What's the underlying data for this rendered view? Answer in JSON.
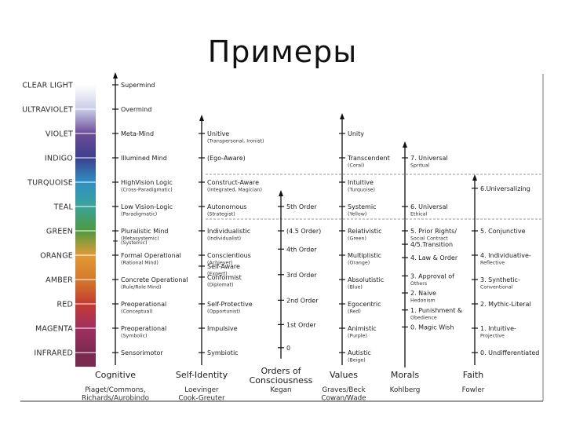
{
  "title": "Примеры",
  "spectrum": {
    "levels": [
      {
        "name": "CLEAR LIGHT",
        "color": "#ffffff"
      },
      {
        "name": "ULTRAVIOLET",
        "color": "#c9cde8"
      },
      {
        "name": "VIOLET",
        "color": "#6c4c98"
      },
      {
        "name": "INDIGO",
        "color": "#3d3f8e"
      },
      {
        "name": "TURQUOISE",
        "color": "#2f8fc4"
      },
      {
        "name": "TEAL",
        "color": "#3aa39a"
      },
      {
        "name": "GREEN",
        "color": "#4f9a3d"
      },
      {
        "name": "ORANGE",
        "color": "#e39a36"
      },
      {
        "name": "AMBER",
        "color": "#d67a2c"
      },
      {
        "name": "RED",
        "color": "#c33a30"
      },
      {
        "name": "MAGENTA",
        "color": "#a03062"
      },
      {
        "name": "INFRARED",
        "color": "#7a2a4e"
      }
    ]
  },
  "columns": [
    {
      "heading": "Cognitive",
      "sources": [
        "Piaget/Commons,",
        "Richards/Aurobindo"
      ],
      "stages": [
        {
          "level": 0,
          "main": "Supermind",
          "sub": ""
        },
        {
          "level": 1,
          "main": "Overmind",
          "sub": ""
        },
        {
          "level": 2,
          "main": "Meta-Mind",
          "sub": ""
        },
        {
          "level": 3,
          "main": "Illumined Mind",
          "sub": ""
        },
        {
          "level": 4,
          "main": "HighVision Logic",
          "sub": "(Cross-Paradigmatic)"
        },
        {
          "level": 5,
          "main": "Low Vision-Logic",
          "sub": "(Paradigmatic)"
        },
        {
          "level": 6,
          "main": "Pluralistic Mind",
          "sub": "(Metasystemic)"
        },
        {
          "level": 6.45,
          "main": "",
          "sub": "(Systemic)"
        },
        {
          "level": 7,
          "main": "Formal Operational",
          "sub": "(Rational Mind)"
        },
        {
          "level": 8,
          "main": "Concrete Operational",
          "sub": "(Rule/Role Mind)"
        },
        {
          "level": 9,
          "main": "Preoperational",
          "sub": "(Conceptual)"
        },
        {
          "level": 10,
          "main": "Preoperational",
          "sub": "(Symbolic)"
        },
        {
          "level": 11,
          "main": "Sensorimotor",
          "sub": ""
        }
      ]
    },
    {
      "heading": "Self-Identity",
      "sources": [
        "Loevinger",
        "Cook-Greuter"
      ],
      "stages": [
        {
          "level": 2,
          "main": "Unitive",
          "sub": "(Transpersonal, Ironist)"
        },
        {
          "level": 3,
          "main": "(Ego-Aware)",
          "sub": ""
        },
        {
          "level": 4,
          "main": "Construct-Aware",
          "sub": "(Integrated, Magician)"
        },
        {
          "level": 5,
          "main": "Autonomous",
          "sub": "(Strategist)"
        },
        {
          "level": 6,
          "main": "Individualistic",
          "sub": "(Individualist)"
        },
        {
          "level": 7,
          "main": "Conscientious",
          "sub": "(Achiever)"
        },
        {
          "level": 7.45,
          "main": "Self-Aware",
          "sub": "(Expert)"
        },
        {
          "level": 7.9,
          "main": "Conformist",
          "sub": "(Diplomat)"
        },
        {
          "level": 9,
          "main": "Self-Protective",
          "sub": "(Opportunist)"
        },
        {
          "level": 10,
          "main": "Impulsive",
          "sub": ""
        },
        {
          "level": 11,
          "main": "Symbiotic",
          "sub": ""
        }
      ]
    },
    {
      "heading": "Orders of Consciousness",
      "sources": [
        "Kegan"
      ],
      "stages": [
        {
          "level": 5,
          "main": "5th Order",
          "sub": ""
        },
        {
          "level": 6,
          "main": "(4.5 Order)",
          "sub": ""
        },
        {
          "level": 6.75,
          "main": "4th Order",
          "sub": ""
        },
        {
          "level": 7.8,
          "main": "3rd Order",
          "sub": ""
        },
        {
          "level": 8.85,
          "main": "2nd Order",
          "sub": ""
        },
        {
          "level": 9.85,
          "main": "1st Order",
          "sub": ""
        },
        {
          "level": 10.8,
          "main": "0",
          "sub": ""
        }
      ]
    },
    {
      "heading": "Values",
      "sources": [
        "Graves/Beck",
        "Cowan/Wade"
      ],
      "stages": [
        {
          "level": 2,
          "main": "Unity",
          "sub": ""
        },
        {
          "level": 3,
          "main": "Transcendent",
          "sub": "(Coral)"
        },
        {
          "level": 4,
          "main": "Intuitive",
          "sub": "(Turquoise)"
        },
        {
          "level": 5,
          "main": "Systemic",
          "sub": "(Yellow)"
        },
        {
          "level": 6,
          "main": "Relativistic",
          "sub": "(Green)"
        },
        {
          "level": 7,
          "main": "Multiplistic",
          "sub": "(Orange)"
        },
        {
          "level": 8,
          "main": "Absolutistic",
          "sub": "(Blue)"
        },
        {
          "level": 9,
          "main": "Egocentric",
          "sub": "(Red)"
        },
        {
          "level": 10,
          "main": "Animistic",
          "sub": "(Purple)"
        },
        {
          "level": 11,
          "main": "Autistic",
          "sub": "(Beige)"
        }
      ]
    },
    {
      "heading": "Morals",
      "sources": [
        "Kohlberg"
      ],
      "stages": [
        {
          "level": 3,
          "main": "7. Universal",
          "sub": "Spritual"
        },
        {
          "level": 5,
          "main": "6. Universal",
          "sub": "Ethical"
        },
        {
          "level": 6,
          "main": "5. Prior Rights/",
          "sub": "Social Contract"
        },
        {
          "level": 6.55,
          "main": "4/5.Transition",
          "sub": ""
        },
        {
          "level": 7.1,
          "main": "4. Law & Order",
          "sub": ""
        },
        {
          "level": 7.85,
          "main": "3. Approval of",
          "sub": "Others"
        },
        {
          "level": 8.55,
          "main": "2. Naive",
          "sub": "Hedonism"
        },
        {
          "level": 9.25,
          "main": "1. Punishment &",
          "sub": "Obedience"
        },
        {
          "level": 9.95,
          "main": "0. Magic Wish",
          "sub": ""
        }
      ]
    },
    {
      "heading": "Faith",
      "sources": [
        "Fowler"
      ],
      "stages": [
        {
          "level": 4.25,
          "main": "6.Universalizing",
          "sub": ""
        },
        {
          "level": 6,
          "main": "5. Conjunctive",
          "sub": ""
        },
        {
          "level": 7,
          "main": "4. Individuative-",
          "sub": "Reflective"
        },
        {
          "level": 8,
          "main": "3. Synthetic-",
          "sub": "Conventional"
        },
        {
          "level": 9,
          "main": "2. Mythic-Literal",
          "sub": ""
        },
        {
          "level": 10,
          "main": "1. Intuitive-",
          "sub": "Projective"
        },
        {
          "level": 11,
          "main": "0. Undifferentiated",
          "sub": ""
        }
      ]
    }
  ]
}
